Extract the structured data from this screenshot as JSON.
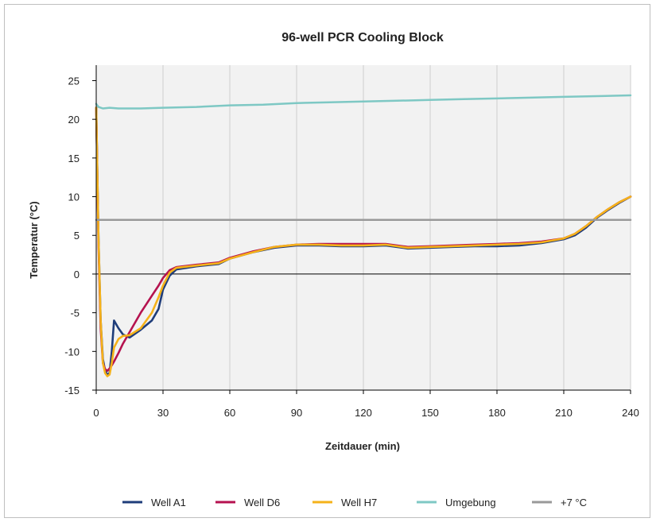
{
  "chart_data": {
    "type": "line",
    "title": "96-well PCR Cooling Block",
    "xlabel": "Zeitdauer (min)",
    "ylabel": "Temperatur  (°C)",
    "xlim": [
      0,
      240
    ],
    "ylim": [
      -15,
      27
    ],
    "xticks": [
      0,
      30,
      60,
      90,
      120,
      150,
      180,
      210,
      240
    ],
    "yticks": [
      -15,
      -10,
      -5,
      0,
      5,
      10,
      15,
      20,
      25
    ],
    "xtick_labels": [
      "0",
      "30",
      "60",
      "90",
      "120",
      "150",
      "180",
      "210",
      "240"
    ],
    "ytick_labels": [
      "-15",
      "-10",
      "-5",
      "0",
      "5",
      "10",
      "15",
      "20",
      "25"
    ],
    "grid": "vertical",
    "legend_position": "bottom",
    "series": [
      {
        "name": "Well A1",
        "color": "#1f3d7a",
        "x": [
          0,
          1,
          2,
          3,
          4,
          5,
          6,
          7,
          8,
          10,
          12,
          15,
          20,
          25,
          28,
          30,
          33,
          36,
          45,
          55,
          60,
          70,
          80,
          90,
          100,
          110,
          120,
          130,
          135,
          140,
          150,
          160,
          170,
          180,
          190,
          200,
          210,
          215,
          220,
          225,
          230,
          235,
          240
        ],
        "y": [
          21.5,
          5,
          -6,
          -11,
          -12.5,
          -13,
          -12.8,
          -10,
          -6,
          -7,
          -7.8,
          -8.2,
          -7.2,
          -6,
          -4.5,
          -2,
          -0.2,
          0.6,
          1,
          1.3,
          2,
          2.8,
          3.4,
          3.7,
          3.7,
          3.6,
          3.6,
          3.7,
          3.5,
          3.3,
          3.4,
          3.5,
          3.6,
          3.6,
          3.7,
          4,
          4.5,
          5,
          6,
          7.3,
          8.3,
          9.2,
          10
        ]
      },
      {
        "name": "Well D6",
        "color": "#b5124f",
        "x": [
          0,
          1,
          2,
          3,
          4,
          5,
          6,
          7,
          8,
          10,
          12,
          15,
          20,
          25,
          28,
          30,
          33,
          36,
          45,
          55,
          60,
          70,
          80,
          90,
          100,
          110,
          120,
          130,
          135,
          140,
          150,
          160,
          170,
          180,
          190,
          200,
          210,
          215,
          220,
          225,
          230,
          235,
          240
        ],
        "y": [
          21.5,
          4,
          -7,
          -11.5,
          -12.3,
          -12.5,
          -12.2,
          -11.8,
          -11.3,
          -10.2,
          -9,
          -7.5,
          -5,
          -2.8,
          -1.5,
          -0.5,
          0.5,
          0.9,
          1.2,
          1.5,
          2.1,
          2.9,
          3.5,
          3.8,
          3.9,
          3.9,
          3.9,
          3.9,
          3.7,
          3.5,
          3.6,
          3.7,
          3.8,
          3.9,
          4,
          4.2,
          4.6,
          5.2,
          6.2,
          7.4,
          8.4,
          9.3,
          10
        ]
      },
      {
        "name": "Well H7",
        "color": "#f5b21a",
        "x": [
          0,
          1,
          2,
          3,
          4,
          5,
          6,
          7,
          8,
          10,
          12,
          15,
          20,
          25,
          28,
          30,
          33,
          36,
          45,
          55,
          60,
          70,
          80,
          90,
          100,
          110,
          120,
          130,
          135,
          140,
          150,
          160,
          170,
          180,
          190,
          200,
          210,
          215,
          220,
          225,
          230,
          235,
          240
        ],
        "y": [
          21.5,
          5,
          -6,
          -11.5,
          -12.8,
          -13.2,
          -13,
          -11.5,
          -9.5,
          -8.4,
          -8,
          -7.9,
          -7,
          -5,
          -3,
          -1.5,
          0.2,
          0.8,
          1.1,
          1.4,
          2,
          2.8,
          3.5,
          3.8,
          3.8,
          3.7,
          3.7,
          3.8,
          3.6,
          3.4,
          3.5,
          3.6,
          3.7,
          3.8,
          3.9,
          4.1,
          4.6,
          5.2,
          6.2,
          7.4,
          8.4,
          9.3,
          10
        ]
      },
      {
        "name": "Umgebung",
        "color": "#7ec8c4",
        "x": [
          0,
          1,
          3,
          6,
          10,
          20,
          30,
          45,
          60,
          75,
          90,
          105,
          120,
          135,
          150,
          165,
          180,
          195,
          210,
          225,
          240
        ],
        "y": [
          22,
          21.6,
          21.4,
          21.5,
          21.4,
          21.4,
          21.5,
          21.6,
          21.8,
          21.9,
          22.1,
          22.2,
          22.3,
          22.4,
          22.5,
          22.6,
          22.7,
          22.8,
          22.9,
          23,
          23.1
        ]
      },
      {
        "name": "+7 °C",
        "color": "#999999",
        "x": [
          0,
          240
        ],
        "y": [
          7,
          7
        ]
      }
    ]
  }
}
